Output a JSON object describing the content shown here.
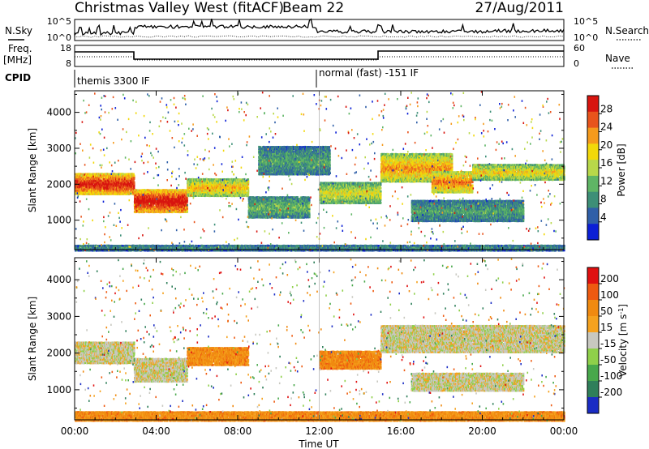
{
  "header": {
    "title": "Christmas Valley West (fitACF)",
    "beam": "Beam 22",
    "date": "27/Aug/2011"
  },
  "top_panels": {
    "nsky_label": "N.Sky",
    "nsearch_label": "N.Search",
    "freq_label_line1": "Freq.",
    "freq_label_line2": "[MHz]",
    "nave_label": "Nave",
    "cpid_label": "CPID",
    "nsky_ticks": [
      "10^5",
      "10^0"
    ],
    "nsearch_ticks": [
      "10^5",
      "10^0"
    ],
    "freq_ticks": [
      "18",
      "8"
    ],
    "nave_ticks": [
      "60",
      "0"
    ],
    "cpid_segments": [
      "themis 3300 IF",
      "normal (fast) -151 IF"
    ]
  },
  "chart_data": [
    {
      "type": "heatmap",
      "name": "power",
      "ylabel": "Slant Range [km]",
      "yticks": [
        "1000",
        "2000",
        "3000",
        "4000"
      ],
      "ylim": [
        180,
        4600
      ],
      "xlim": [
        0,
        24
      ],
      "colorbar_label": "Power [dB]",
      "colorbar_ticks": [
        "28",
        "24",
        "20",
        "16",
        "12",
        "8",
        "4"
      ],
      "colorbar_colors": [
        "#0b1fd6",
        "#2f5fa8",
        "#3d8f77",
        "#5fb565",
        "#b8d84a",
        "#f2d80a",
        "#f59a1c",
        "#e8541c",
        "#d8150f"
      ],
      "bands": [
        {
          "t0": 0.0,
          "t1": 2.9,
          "r0": 1750,
          "r1": 2350,
          "level": 0.85
        },
        {
          "t0": 2.9,
          "t1": 5.5,
          "r0": 1250,
          "r1": 1900,
          "level": 0.9
        },
        {
          "t0": 5.5,
          "t1": 8.5,
          "r0": 1700,
          "r1": 2200,
          "level": 0.6
        },
        {
          "t0": 8.5,
          "t1": 11.5,
          "r0": 1100,
          "r1": 1700,
          "level": 0.35
        },
        {
          "t0": 9.0,
          "t1": 12.5,
          "r0": 2300,
          "r1": 3100,
          "level": 0.3
        },
        {
          "t0": 12.0,
          "t1": 15.0,
          "r0": 1500,
          "r1": 2100,
          "level": 0.5
        },
        {
          "t0": 15.0,
          "t1": 18.5,
          "r0": 2100,
          "r1": 2900,
          "level": 0.65
        },
        {
          "t0": 17.5,
          "t1": 19.5,
          "r0": 1800,
          "r1": 2400,
          "level": 0.7
        },
        {
          "t0": 19.5,
          "t1": 24.0,
          "r0": 2150,
          "r1": 2600,
          "level": 0.55
        },
        {
          "t0": 16.5,
          "t1": 22.0,
          "r0": 1000,
          "r1": 1600,
          "level": 0.3
        },
        {
          "t0": 0.0,
          "t1": 24.0,
          "r0": 180,
          "r1": 350,
          "level": 0.25
        }
      ]
    },
    {
      "type": "heatmap",
      "name": "velocity",
      "ylabel": "Slant Range [km]",
      "xlabel": "Time UT",
      "xticks": [
        "00:00",
        "04:00",
        "08:00",
        "12:00",
        "16:00",
        "20:00",
        "00:00"
      ],
      "yticks": [
        "1000",
        "2000",
        "3000",
        "4000"
      ],
      "ylim": [
        180,
        4600
      ],
      "xlim": [
        0,
        24
      ],
      "colorbar_label": "Velocity [m s",
      "colorbar_label_sup": "-1",
      "colorbar_label_end": "]",
      "colorbar_ticks": [
        "200",
        "100",
        "50",
        "15",
        "-15",
        "-50",
        "-100",
        "-200"
      ],
      "colorbar_colors": [
        "#1a2cc4",
        "#2f7f5a",
        "#48a84b",
        "#8fd04a",
        "#c8c8c0",
        "#f5a21e",
        "#f08a10",
        "#ee5a10",
        "#e01010"
      ],
      "bands": [
        {
          "t0": 0.0,
          "t1": 2.9,
          "r0": 1750,
          "r1": 2350,
          "level": 0.5
        },
        {
          "t0": 2.9,
          "t1": 5.5,
          "r0": 1250,
          "r1": 1900,
          "level": 0.5
        },
        {
          "t0": 5.5,
          "t1": 8.5,
          "r0": 1700,
          "r1": 2200,
          "level": 0.7
        },
        {
          "t0": 12.0,
          "t1": 15.0,
          "r0": 1600,
          "r1": 2100,
          "level": 0.72
        },
        {
          "t0": 15.0,
          "t1": 24.0,
          "r0": 2050,
          "r1": 2800,
          "level": 0.5
        },
        {
          "t0": 16.5,
          "t1": 22.0,
          "r0": 1000,
          "r1": 1500,
          "level": 0.5
        },
        {
          "t0": 0.0,
          "t1": 24.0,
          "r0": 180,
          "r1": 450,
          "level": 0.7
        }
      ]
    }
  ]
}
